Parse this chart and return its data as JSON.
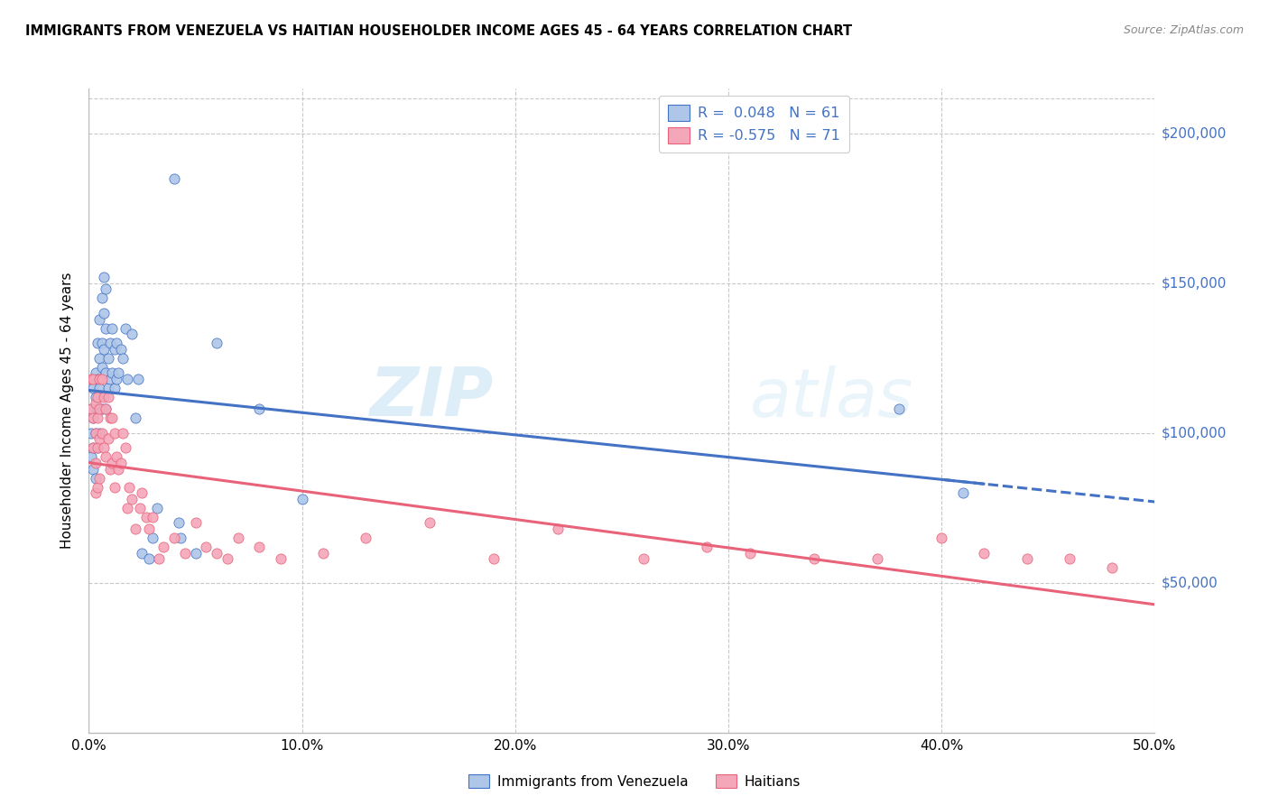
{
  "title": "IMMIGRANTS FROM VENEZUELA VS HAITIAN HOUSEHOLDER INCOME AGES 45 - 64 YEARS CORRELATION CHART",
  "source": "Source: ZipAtlas.com",
  "ylabel": "Householder Income Ages 45 - 64 years",
  "ytick_labels": [
    "$50,000",
    "$100,000",
    "$150,000",
    "$200,000"
  ],
  "ytick_values": [
    50000,
    100000,
    150000,
    200000
  ],
  "ylim": [
    0,
    215000
  ],
  "xlim": [
    0.0,
    0.5
  ],
  "legend_r1": "R =  0.048",
  "legend_n1": "N = 61",
  "legend_r2": "R = -0.575",
  "legend_n2": "N = 71",
  "color_venezuela": "#aec6e8",
  "color_haiti": "#f4a7b9",
  "color_venezuela_line": "#4472c4",
  "color_haiti_line": "#e8637a",
  "watermark_zip": "ZIP",
  "watermark_atlas": "atlas",
  "venezuela_x": [
    0.001,
    0.001,
    0.001,
    0.002,
    0.002,
    0.002,
    0.002,
    0.003,
    0.003,
    0.003,
    0.003,
    0.004,
    0.004,
    0.004,
    0.004,
    0.005,
    0.005,
    0.005,
    0.005,
    0.006,
    0.006,
    0.006,
    0.006,
    0.007,
    0.007,
    0.007,
    0.008,
    0.008,
    0.008,
    0.008,
    0.009,
    0.009,
    0.01,
    0.01,
    0.011,
    0.011,
    0.012,
    0.012,
    0.013,
    0.013,
    0.014,
    0.015,
    0.016,
    0.017,
    0.018,
    0.02,
    0.022,
    0.023,
    0.025,
    0.028,
    0.03,
    0.032,
    0.04,
    0.042,
    0.043,
    0.05,
    0.06,
    0.08,
    0.1,
    0.38,
    0.41
  ],
  "venezuela_y": [
    108000,
    100000,
    92000,
    115000,
    105000,
    95000,
    88000,
    120000,
    112000,
    100000,
    85000,
    130000,
    118000,
    108000,
    95000,
    138000,
    125000,
    115000,
    100000,
    145000,
    130000,
    122000,
    108000,
    152000,
    140000,
    128000,
    148000,
    135000,
    120000,
    108000,
    125000,
    115000,
    130000,
    118000,
    135000,
    120000,
    128000,
    115000,
    130000,
    118000,
    120000,
    128000,
    125000,
    135000,
    118000,
    133000,
    105000,
    118000,
    60000,
    58000,
    65000,
    75000,
    185000,
    70000,
    65000,
    60000,
    130000,
    108000,
    78000,
    108000,
    80000
  ],
  "haiti_x": [
    0.001,
    0.001,
    0.002,
    0.002,
    0.002,
    0.003,
    0.003,
    0.003,
    0.003,
    0.004,
    0.004,
    0.004,
    0.004,
    0.005,
    0.005,
    0.005,
    0.005,
    0.006,
    0.006,
    0.007,
    0.007,
    0.008,
    0.008,
    0.009,
    0.009,
    0.01,
    0.01,
    0.011,
    0.011,
    0.012,
    0.012,
    0.013,
    0.014,
    0.015,
    0.016,
    0.017,
    0.018,
    0.019,
    0.02,
    0.022,
    0.024,
    0.025,
    0.027,
    0.028,
    0.03,
    0.033,
    0.035,
    0.04,
    0.045,
    0.05,
    0.055,
    0.06,
    0.065,
    0.07,
    0.08,
    0.09,
    0.11,
    0.13,
    0.16,
    0.19,
    0.22,
    0.26,
    0.29,
    0.31,
    0.34,
    0.37,
    0.4,
    0.42,
    0.44,
    0.46,
    0.48
  ],
  "haiti_y": [
    118000,
    108000,
    118000,
    105000,
    95000,
    110000,
    100000,
    90000,
    80000,
    112000,
    105000,
    95000,
    82000,
    118000,
    108000,
    98000,
    85000,
    118000,
    100000,
    112000,
    95000,
    108000,
    92000,
    112000,
    98000,
    105000,
    88000,
    105000,
    90000,
    100000,
    82000,
    92000,
    88000,
    90000,
    100000,
    95000,
    75000,
    82000,
    78000,
    68000,
    75000,
    80000,
    72000,
    68000,
    72000,
    58000,
    62000,
    65000,
    60000,
    70000,
    62000,
    60000,
    58000,
    65000,
    62000,
    58000,
    60000,
    65000,
    70000,
    58000,
    68000,
    58000,
    62000,
    60000,
    58000,
    58000,
    65000,
    60000,
    58000,
    58000,
    55000
  ]
}
